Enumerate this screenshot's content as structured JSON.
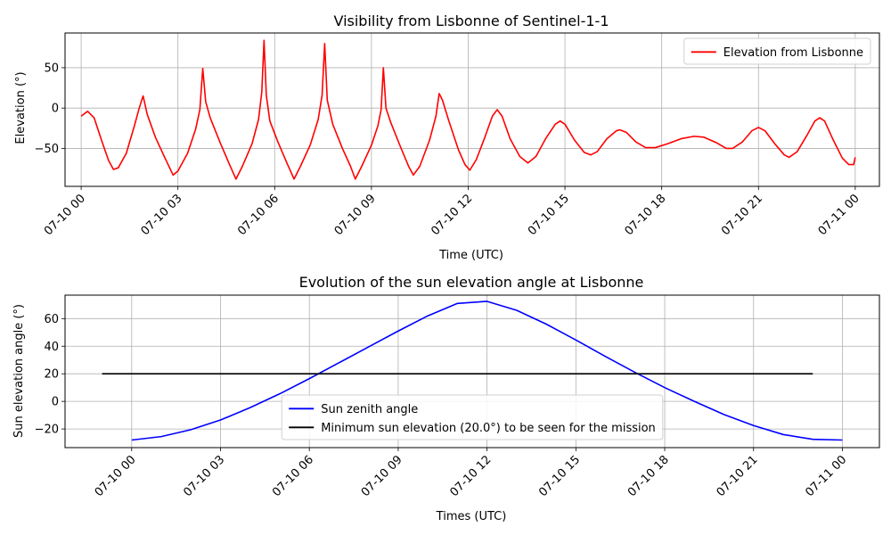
{
  "chart_data": [
    {
      "type": "line",
      "title": "Visibility from Lisbonne of Sentinel-1-1",
      "xlabel": "Time (UTC)",
      "ylabel": "Elevation (°)",
      "xlim": [
        -0.5,
        24.75
      ],
      "ylim": [
        -97,
        93
      ],
      "yticks": [
        -50,
        0,
        50
      ],
      "xticks": [
        0,
        3,
        6,
        9,
        12,
        15,
        18,
        21,
        24
      ],
      "xtick_labels": [
        "07-10 00",
        "07-10 03",
        "07-10 06",
        "07-10 09",
        "07-10 12",
        "07-10 15",
        "07-10 18",
        "07-10 21",
        "07-11 00"
      ],
      "grid": true,
      "legend_position": "upper right",
      "series": [
        {
          "name": "Elevation from Lisbonne",
          "color": "#ff0000",
          "points": [
            [
              0,
              -10
            ],
            [
              0.2,
              -4
            ],
            [
              0.4,
              -12
            ],
            [
              0.65,
              -42
            ],
            [
              0.85,
              -65
            ],
            [
              1.0,
              -76
            ],
            [
              1.15,
              -74
            ],
            [
              1.4,
              -56
            ],
            [
              1.65,
              -22
            ],
            [
              1.8,
              0
            ],
            [
              1.92,
              15
            ],
            [
              2.05,
              -8
            ],
            [
              2.3,
              -36
            ],
            [
              2.6,
              -62
            ],
            [
              2.85,
              -83
            ],
            [
              3.0,
              -78
            ],
            [
              3.3,
              -56
            ],
            [
              3.55,
              -26
            ],
            [
              3.68,
              -2
            ],
            [
              3.77,
              49
            ],
            [
              3.86,
              8
            ],
            [
              4.0,
              -12
            ],
            [
              4.3,
              -42
            ],
            [
              4.6,
              -70
            ],
            [
              4.8,
              -88
            ],
            [
              5.0,
              -72
            ],
            [
              5.3,
              -44
            ],
            [
              5.5,
              -14
            ],
            [
              5.6,
              20
            ],
            [
              5.67,
              84
            ],
            [
              5.74,
              16
            ],
            [
              5.85,
              -16
            ],
            [
              6.1,
              -42
            ],
            [
              6.4,
              -70
            ],
            [
              6.6,
              -88
            ],
            [
              6.8,
              -72
            ],
            [
              7.1,
              -46
            ],
            [
              7.35,
              -14
            ],
            [
              7.47,
              16
            ],
            [
              7.55,
              80
            ],
            [
              7.63,
              10
            ],
            [
              7.8,
              -20
            ],
            [
              8.1,
              -50
            ],
            [
              8.35,
              -72
            ],
            [
              8.5,
              -88
            ],
            [
              8.7,
              -72
            ],
            [
              9.0,
              -46
            ],
            [
              9.2,
              -22
            ],
            [
              9.3,
              -2
            ],
            [
              9.37,
              50
            ],
            [
              9.45,
              0
            ],
            [
              9.6,
              -18
            ],
            [
              9.9,
              -48
            ],
            [
              10.15,
              -72
            ],
            [
              10.3,
              -83
            ],
            [
              10.5,
              -72
            ],
            [
              10.8,
              -40
            ],
            [
              11.0,
              -10
            ],
            [
              11.1,
              18
            ],
            [
              11.2,
              10
            ],
            [
              11.4,
              -16
            ],
            [
              11.7,
              -52
            ],
            [
              11.9,
              -70
            ],
            [
              12.05,
              -77
            ],
            [
              12.25,
              -64
            ],
            [
              12.5,
              -38
            ],
            [
              12.75,
              -10
            ],
            [
              12.9,
              -2
            ],
            [
              13.05,
              -10
            ],
            [
              13.3,
              -38
            ],
            [
              13.6,
              -60
            ],
            [
              13.85,
              -68
            ],
            [
              14.1,
              -60
            ],
            [
              14.4,
              -38
            ],
            [
              14.7,
              -20
            ],
            [
              14.85,
              -16
            ],
            [
              15.0,
              -20
            ],
            [
              15.3,
              -40
            ],
            [
              15.6,
              -55
            ],
            [
              15.8,
              -58
            ],
            [
              16.0,
              -54
            ],
            [
              16.3,
              -38
            ],
            [
              16.6,
              -28
            ],
            [
              16.7,
              -27
            ],
            [
              16.9,
              -30
            ],
            [
              17.2,
              -42
            ],
            [
              17.5,
              -49
            ],
            [
              17.8,
              -49
            ],
            [
              18.2,
              -44
            ],
            [
              18.6,
              -38
            ],
            [
              19.0,
              -35
            ],
            [
              19.3,
              -36
            ],
            [
              19.7,
              -43
            ],
            [
              20.0,
              -50
            ],
            [
              20.2,
              -50
            ],
            [
              20.5,
              -42
            ],
            [
              20.8,
              -28
            ],
            [
              21.0,
              -24
            ],
            [
              21.2,
              -28
            ],
            [
              21.5,
              -44
            ],
            [
              21.8,
              -58
            ],
            [
              21.95,
              -61
            ],
            [
              22.2,
              -54
            ],
            [
              22.5,
              -34
            ],
            [
              22.75,
              -16
            ],
            [
              22.9,
              -12
            ],
            [
              23.05,
              -16
            ],
            [
              23.3,
              -38
            ],
            [
              23.6,
              -62
            ],
            [
              23.8,
              -70
            ],
            [
              23.95,
              -70
            ],
            [
              24.0,
              -61
            ]
          ]
        }
      ]
    },
    {
      "type": "line",
      "title": "Evolution of the sun elevation angle at Lisbonne",
      "xlabel": "Times (UTC)",
      "ylabel": "Sun elevation angle (°)",
      "xlim": [
        -2.25,
        25.25
      ],
      "ylim": [
        -33.5,
        77
      ],
      "yticks": [
        -20,
        0,
        20,
        40,
        60
      ],
      "xticks": [
        0,
        3,
        6,
        9,
        12,
        15,
        18,
        21,
        24
      ],
      "xtick_labels": [
        "07-10 00",
        "07-10 03",
        "07-10 06",
        "07-10 09",
        "07-10 12",
        "07-10 15",
        "07-10 18",
        "07-10 21",
        "07-11 00"
      ],
      "grid": true,
      "legend_position": "lower center",
      "series": [
        {
          "name": "Sun zenith angle",
          "color": "#0000ff",
          "points": [
            [
              0,
              -28
            ],
            [
              1,
              -25.5
            ],
            [
              2,
              -20.5
            ],
            [
              3,
              -13.5
            ],
            [
              4,
              -4.5
            ],
            [
              5,
              5.5
            ],
            [
              6,
              16.5
            ],
            [
              7,
              28
            ],
            [
              8,
              39.5
            ],
            [
              9,
              51
            ],
            [
              10,
              62
            ],
            [
              11,
              71
            ],
            [
              12,
              72.5
            ],
            [
              13,
              66
            ],
            [
              14,
              56
            ],
            [
              15,
              44.5
            ],
            [
              16,
              32.5
            ],
            [
              17,
              21
            ],
            [
              18,
              10
            ],
            [
              19,
              0
            ],
            [
              20,
              -9.5
            ],
            [
              21,
              -17.5
            ],
            [
              22,
              -24
            ],
            [
              23,
              -27.5
            ],
            [
              24,
              -28
            ]
          ]
        },
        {
          "name": "Minimum sun elevation (20.0°) to be seen for the mission",
          "color": "#000000",
          "points": [
            [
              -1,
              20
            ],
            [
              23,
              20
            ]
          ]
        }
      ]
    }
  ]
}
